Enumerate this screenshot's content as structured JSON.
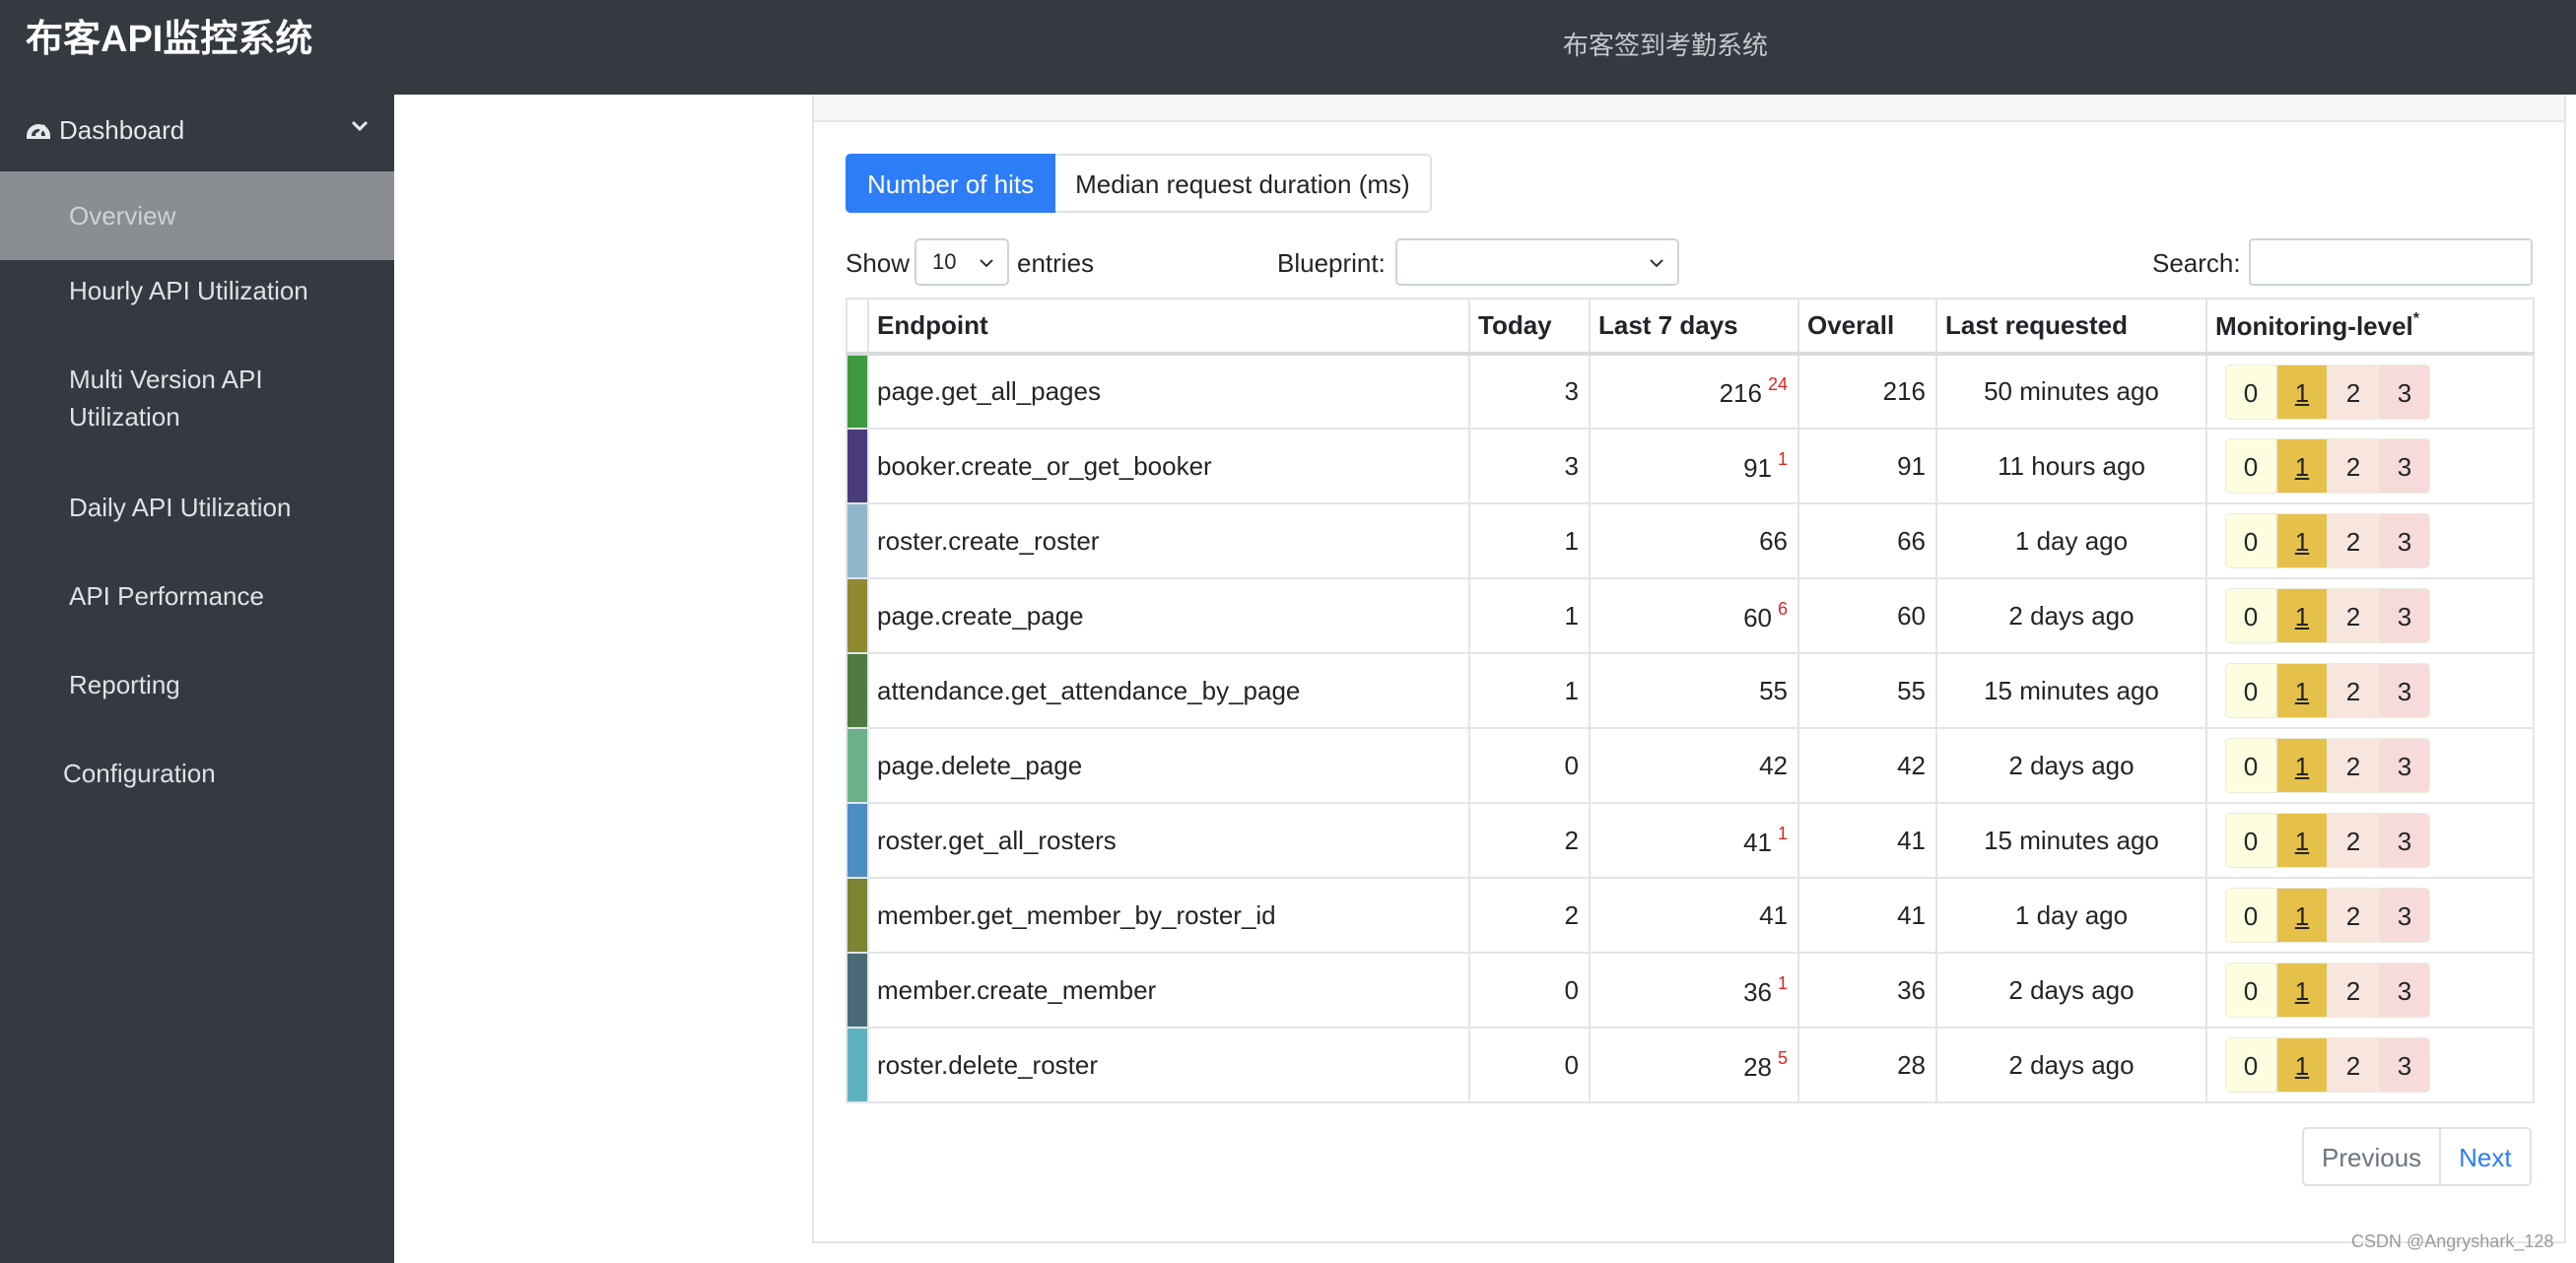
{
  "header": {
    "brand": "布客API监控系统",
    "center_title": "布客签到考勤系统"
  },
  "sidebar": {
    "dashboard_label": "Dashboard",
    "dashboard_icon": "tachometer-icon",
    "items": [
      {
        "label": "Overview",
        "active": true
      },
      {
        "label": "Hourly API Utilization"
      },
      {
        "label": "Multi Version API Utilization"
      },
      {
        "label": "Daily API Utilization"
      },
      {
        "label": "API Performance"
      },
      {
        "label": "Reporting"
      }
    ],
    "configuration_label": "Configuration"
  },
  "tabs": {
    "hits_label": "Number of hits",
    "duration_label": "Median request duration (ms)"
  },
  "controls": {
    "show_label": "Show",
    "entries_value": "10",
    "entries_label": "entries",
    "blueprint_label": "Blueprint:",
    "blueprint_value": "",
    "search_label": "Search:",
    "search_value": ""
  },
  "table": {
    "headers": {
      "endpoint": "Endpoint",
      "today": "Today",
      "last7": "Last 7 days",
      "overall": "Overall",
      "last_requested": "Last requested",
      "monitoring": "Monitoring-level",
      "monitoring_mark": "*"
    },
    "levels": [
      "0",
      "1",
      "2",
      "3"
    ],
    "rows": [
      {
        "color": "#3f9a3f",
        "endpoint": "page.get_all_pages",
        "today": "3",
        "last7": "216",
        "last7_sup": "24",
        "overall": "216",
        "last_requested": "50 minutes ago"
      },
      {
        "color": "#4a3b7c",
        "endpoint": "booker.create_or_get_booker",
        "today": "3",
        "last7": "91",
        "last7_sup": "1",
        "overall": "91",
        "last_requested": "11 hours ago"
      },
      {
        "color": "#8fb7c9",
        "endpoint": "roster.create_roster",
        "today": "1",
        "last7": "66",
        "last7_sup": "",
        "overall": "66",
        "last_requested": "1 day ago"
      },
      {
        "color": "#8f8a32",
        "endpoint": "page.create_page",
        "today": "1",
        "last7": "60",
        "last7_sup": "6",
        "overall": "60",
        "last_requested": "2 days ago"
      },
      {
        "color": "#4f7a42",
        "endpoint": "attendance.get_attendance_by_page",
        "today": "1",
        "last7": "55",
        "last7_sup": "",
        "overall": "55",
        "last_requested": "15 minutes ago"
      },
      {
        "color": "#6ab08a",
        "endpoint": "page.delete_page",
        "today": "0",
        "last7": "42",
        "last7_sup": "",
        "overall": "42",
        "last_requested": "2 days ago"
      },
      {
        "color": "#4e8cc4",
        "endpoint": "roster.get_all_rosters",
        "today": "2",
        "last7": "41",
        "last7_sup": "1",
        "overall": "41",
        "last_requested": "15 minutes ago"
      },
      {
        "color": "#7a8432",
        "endpoint": "member.get_member_by_roster_id",
        "today": "2",
        "last7": "41",
        "last7_sup": "",
        "overall": "41",
        "last_requested": "1 day ago"
      },
      {
        "color": "#4a6a78",
        "endpoint": "member.create_member",
        "today": "0",
        "last7": "36",
        "last7_sup": "1",
        "overall": "36",
        "last_requested": "2 days ago"
      },
      {
        "color": "#5eb1c0",
        "endpoint": "roster.delete_roster",
        "today": "0",
        "last7": "28",
        "last7_sup": "5",
        "overall": "28",
        "last_requested": "2 days ago"
      }
    ]
  },
  "pagination": {
    "previous_label": "Previous",
    "next_label": "Next"
  },
  "watermark": "CSDN @Angryshark_128"
}
